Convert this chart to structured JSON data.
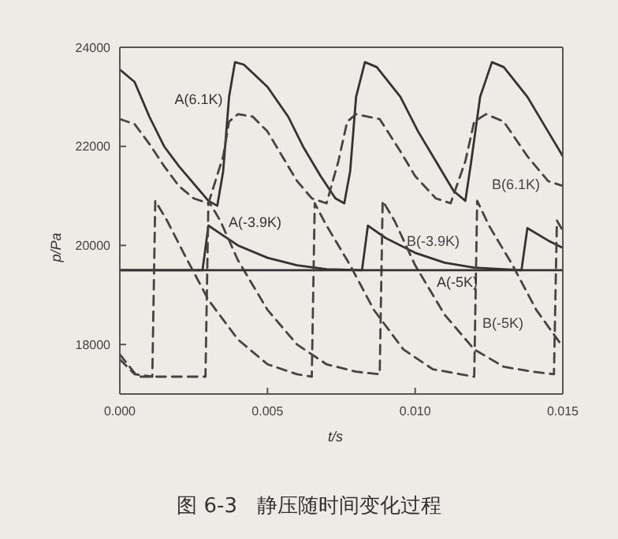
{
  "chart_data": {
    "type": "line",
    "title": "图 6-3   静压随时间变化过程",
    "xlabel": "t/s",
    "ylabel": "p/Pa",
    "xlim": [
      0,
      0.015
    ],
    "xticks": [
      {
        "value": 0,
        "label": "0.000"
      },
      {
        "value": 0.005,
        "label": "0.005"
      },
      {
        "value": 0.01,
        "label": "0.010"
      },
      {
        "value": 0.015,
        "label": "0.015"
      }
    ],
    "ylim": [
      17000,
      24000
    ],
    "yticks": [
      18000,
      20000,
      22000,
      24000
    ],
    "grid": false,
    "legend": false,
    "marker": "none",
    "series": [
      {
        "name": "A(6.1K)",
        "color": "#333333",
        "line_style": "solid",
        "x": [
          0,
          0.0005,
          0.001,
          0.0015,
          0.002,
          0.0025,
          0.003,
          0.0033,
          0.0035,
          0.0037,
          0.0039,
          0.0042,
          0.005,
          0.0057,
          0.0062,
          0.0068,
          0.0073,
          0.0076,
          0.0078,
          0.008,
          0.0083,
          0.0087,
          0.0095,
          0.0101,
          0.0107,
          0.0113,
          0.0117,
          0.0119,
          0.0122,
          0.0126,
          0.013,
          0.0138,
          0.0145,
          0.015
        ],
        "values": [
          23550,
          23300,
          22600,
          22000,
          21600,
          21250,
          20900,
          20800,
          21500,
          23000,
          23700,
          23650,
          23200,
          22600,
          22000,
          21400,
          20950,
          20850,
          21500,
          23000,
          23700,
          23600,
          23000,
          22300,
          21700,
          21100,
          20900,
          21700,
          23000,
          23700,
          23600,
          23000,
          22300,
          21800
        ]
      },
      {
        "name": "B(6.1K)",
        "color": "#444444",
        "line_style": "dashed",
        "x": [
          0,
          0.0005,
          0.001,
          0.0015,
          0.002,
          0.0025,
          0.003,
          0.0035,
          0.0037,
          0.004,
          0.0045,
          0.005,
          0.0055,
          0.006,
          0.0065,
          0.007,
          0.0074,
          0.0077,
          0.008,
          0.0088,
          0.0095,
          0.01,
          0.0107,
          0.0112,
          0.0117,
          0.012,
          0.0124,
          0.013,
          0.0138,
          0.0145,
          0.015
        ],
        "values": [
          22550,
          22450,
          22050,
          21600,
          21200,
          20950,
          20850,
          21800,
          22500,
          22650,
          22600,
          22300,
          21800,
          21300,
          20950,
          20850,
          21700,
          22500,
          22650,
          22550,
          21900,
          21400,
          20950,
          20850,
          21700,
          22500,
          22650,
          22500,
          21800,
          21300,
          21200
        ]
      },
      {
        "name": "A(-3.9K)",
        "color": "#333333",
        "line_style": "solid",
        "x": [
          0,
          0.0028,
          0.003,
          0.0035,
          0.004,
          0.005,
          0.006,
          0.007,
          0.0082,
          0.0084,
          0.009,
          0.01,
          0.011,
          0.012,
          0.0136,
          0.0138,
          0.0145,
          0.015
        ],
        "values": [
          19500,
          19500,
          20400,
          20200,
          20000,
          19750,
          19600,
          19520,
          19500,
          20400,
          20150,
          19850,
          19650,
          19550,
          19500,
          20350,
          20100,
          19950
        ]
      },
      {
        "name": "B(-3.9K)",
        "color": "#444444",
        "line_style": "dashed",
        "x": [
          0,
          0.0006,
          0.0029,
          0.003,
          0.0034,
          0.004,
          0.005,
          0.006,
          0.007,
          0.008,
          0.0088,
          0.0089,
          0.0093,
          0.01,
          0.011,
          0.012,
          0.013,
          0.014,
          0.0147,
          0.0148,
          0.015
        ],
        "values": [
          17800,
          17350,
          17350,
          20900,
          20500,
          19700,
          18700,
          18000,
          17600,
          17450,
          17400,
          20900,
          20500,
          19600,
          18600,
          17900,
          17550,
          17450,
          17400,
          20500,
          20300
        ]
      },
      {
        "name": "A(-5K)",
        "color": "#333333",
        "line_style": "solid",
        "x": [
          0,
          0.0025,
          0.005,
          0.0075,
          0.011,
          0.0125,
          0.015
        ],
        "values": [
          19500,
          19500,
          19500,
          19500,
          19500,
          19500,
          19500
        ]
      },
      {
        "name": "B(-5K)",
        "color": "#444444",
        "line_style": "dashed",
        "x": [
          0,
          0.0005,
          0.0011,
          0.0012,
          0.0016,
          0.0022,
          0.003,
          0.004,
          0.005,
          0.006,
          0.0065,
          0.0066,
          0.007,
          0.0078,
          0.0086,
          0.0096,
          0.0106,
          0.012,
          0.0121,
          0.0125,
          0.0133,
          0.0141,
          0.015
        ],
        "values": [
          17700,
          17400,
          17350,
          20900,
          20500,
          19800,
          18900,
          18100,
          17600,
          17400,
          17350,
          20850,
          20400,
          19600,
          18700,
          17900,
          17500,
          17350,
          20900,
          20400,
          19600,
          18700,
          17950
        ]
      }
    ]
  }
}
